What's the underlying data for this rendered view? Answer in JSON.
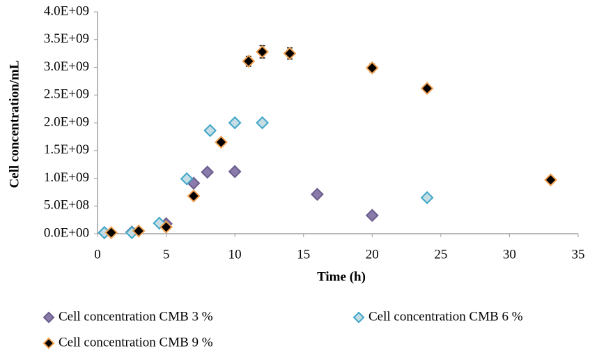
{
  "chart_data": {
    "type": "scatter",
    "x_label": "Time (h)",
    "y_label": "Cell concentration/mL",
    "xlim": [
      0,
      35
    ],
    "xticks": [
      0,
      5,
      10,
      15,
      20,
      25,
      30,
      35
    ],
    "ylim": [
      0,
      4000000000
    ],
    "yticks": [
      {
        "value": 0,
        "label": "0.0E+00"
      },
      {
        "value": 500000000,
        "label": "5.0E+08"
      },
      {
        "value": 1000000000,
        "label": "1.0E+09"
      },
      {
        "value": 1500000000,
        "label": "1.5E+09"
      },
      {
        "value": 2000000000,
        "label": "2.0E+09"
      },
      {
        "value": 2500000000,
        "label": "2.5E+09"
      },
      {
        "value": 3000000000,
        "label": "3.0E+09"
      },
      {
        "value": 3500000000,
        "label": "3.5E+09"
      },
      {
        "value": 4000000000,
        "label": "4.0E+09"
      }
    ],
    "grid": false,
    "legend": "bottom",
    "series": [
      {
        "name": "Cell concentration CMB 3 %",
        "color": "#8a7bab",
        "edge_color": "#6a5d8c",
        "x": [
          0.5,
          2.5,
          5,
          7,
          8,
          10,
          16,
          20
        ],
        "values": [
          20000000,
          30000000,
          180000000,
          910000000,
          1110000000,
          1120000000,
          710000000,
          330000000
        ]
      },
      {
        "name": "Cell concentration CMB 6 %",
        "color": "#c5dde4",
        "edge_color": "#3fa6c8",
        "x": [
          0.5,
          2.5,
          4.5,
          6.5,
          8.2,
          10,
          12,
          24
        ],
        "values": [
          20000000,
          20000000,
          190000000,
          990000000,
          1860000000,
          2000000000,
          2000000000,
          650000000
        ]
      },
      {
        "name": "Cell concentration CMB 9 %",
        "color": "#000000",
        "edge_color": "#f0a050",
        "x": [
          1,
          3,
          5,
          7,
          9,
          11,
          12,
          14,
          20,
          24,
          33
        ],
        "values": [
          20000000,
          50000000,
          120000000,
          680000000,
          1650000000,
          3110000000,
          3280000000,
          3250000000,
          2990000000,
          2620000000,
          970000000
        ],
        "errors": [
          20000000,
          20000000,
          30000000,
          40000000,
          60000000,
          90000000,
          110000000,
          100000000,
          70000000,
          50000000,
          40000000
        ]
      }
    ]
  }
}
